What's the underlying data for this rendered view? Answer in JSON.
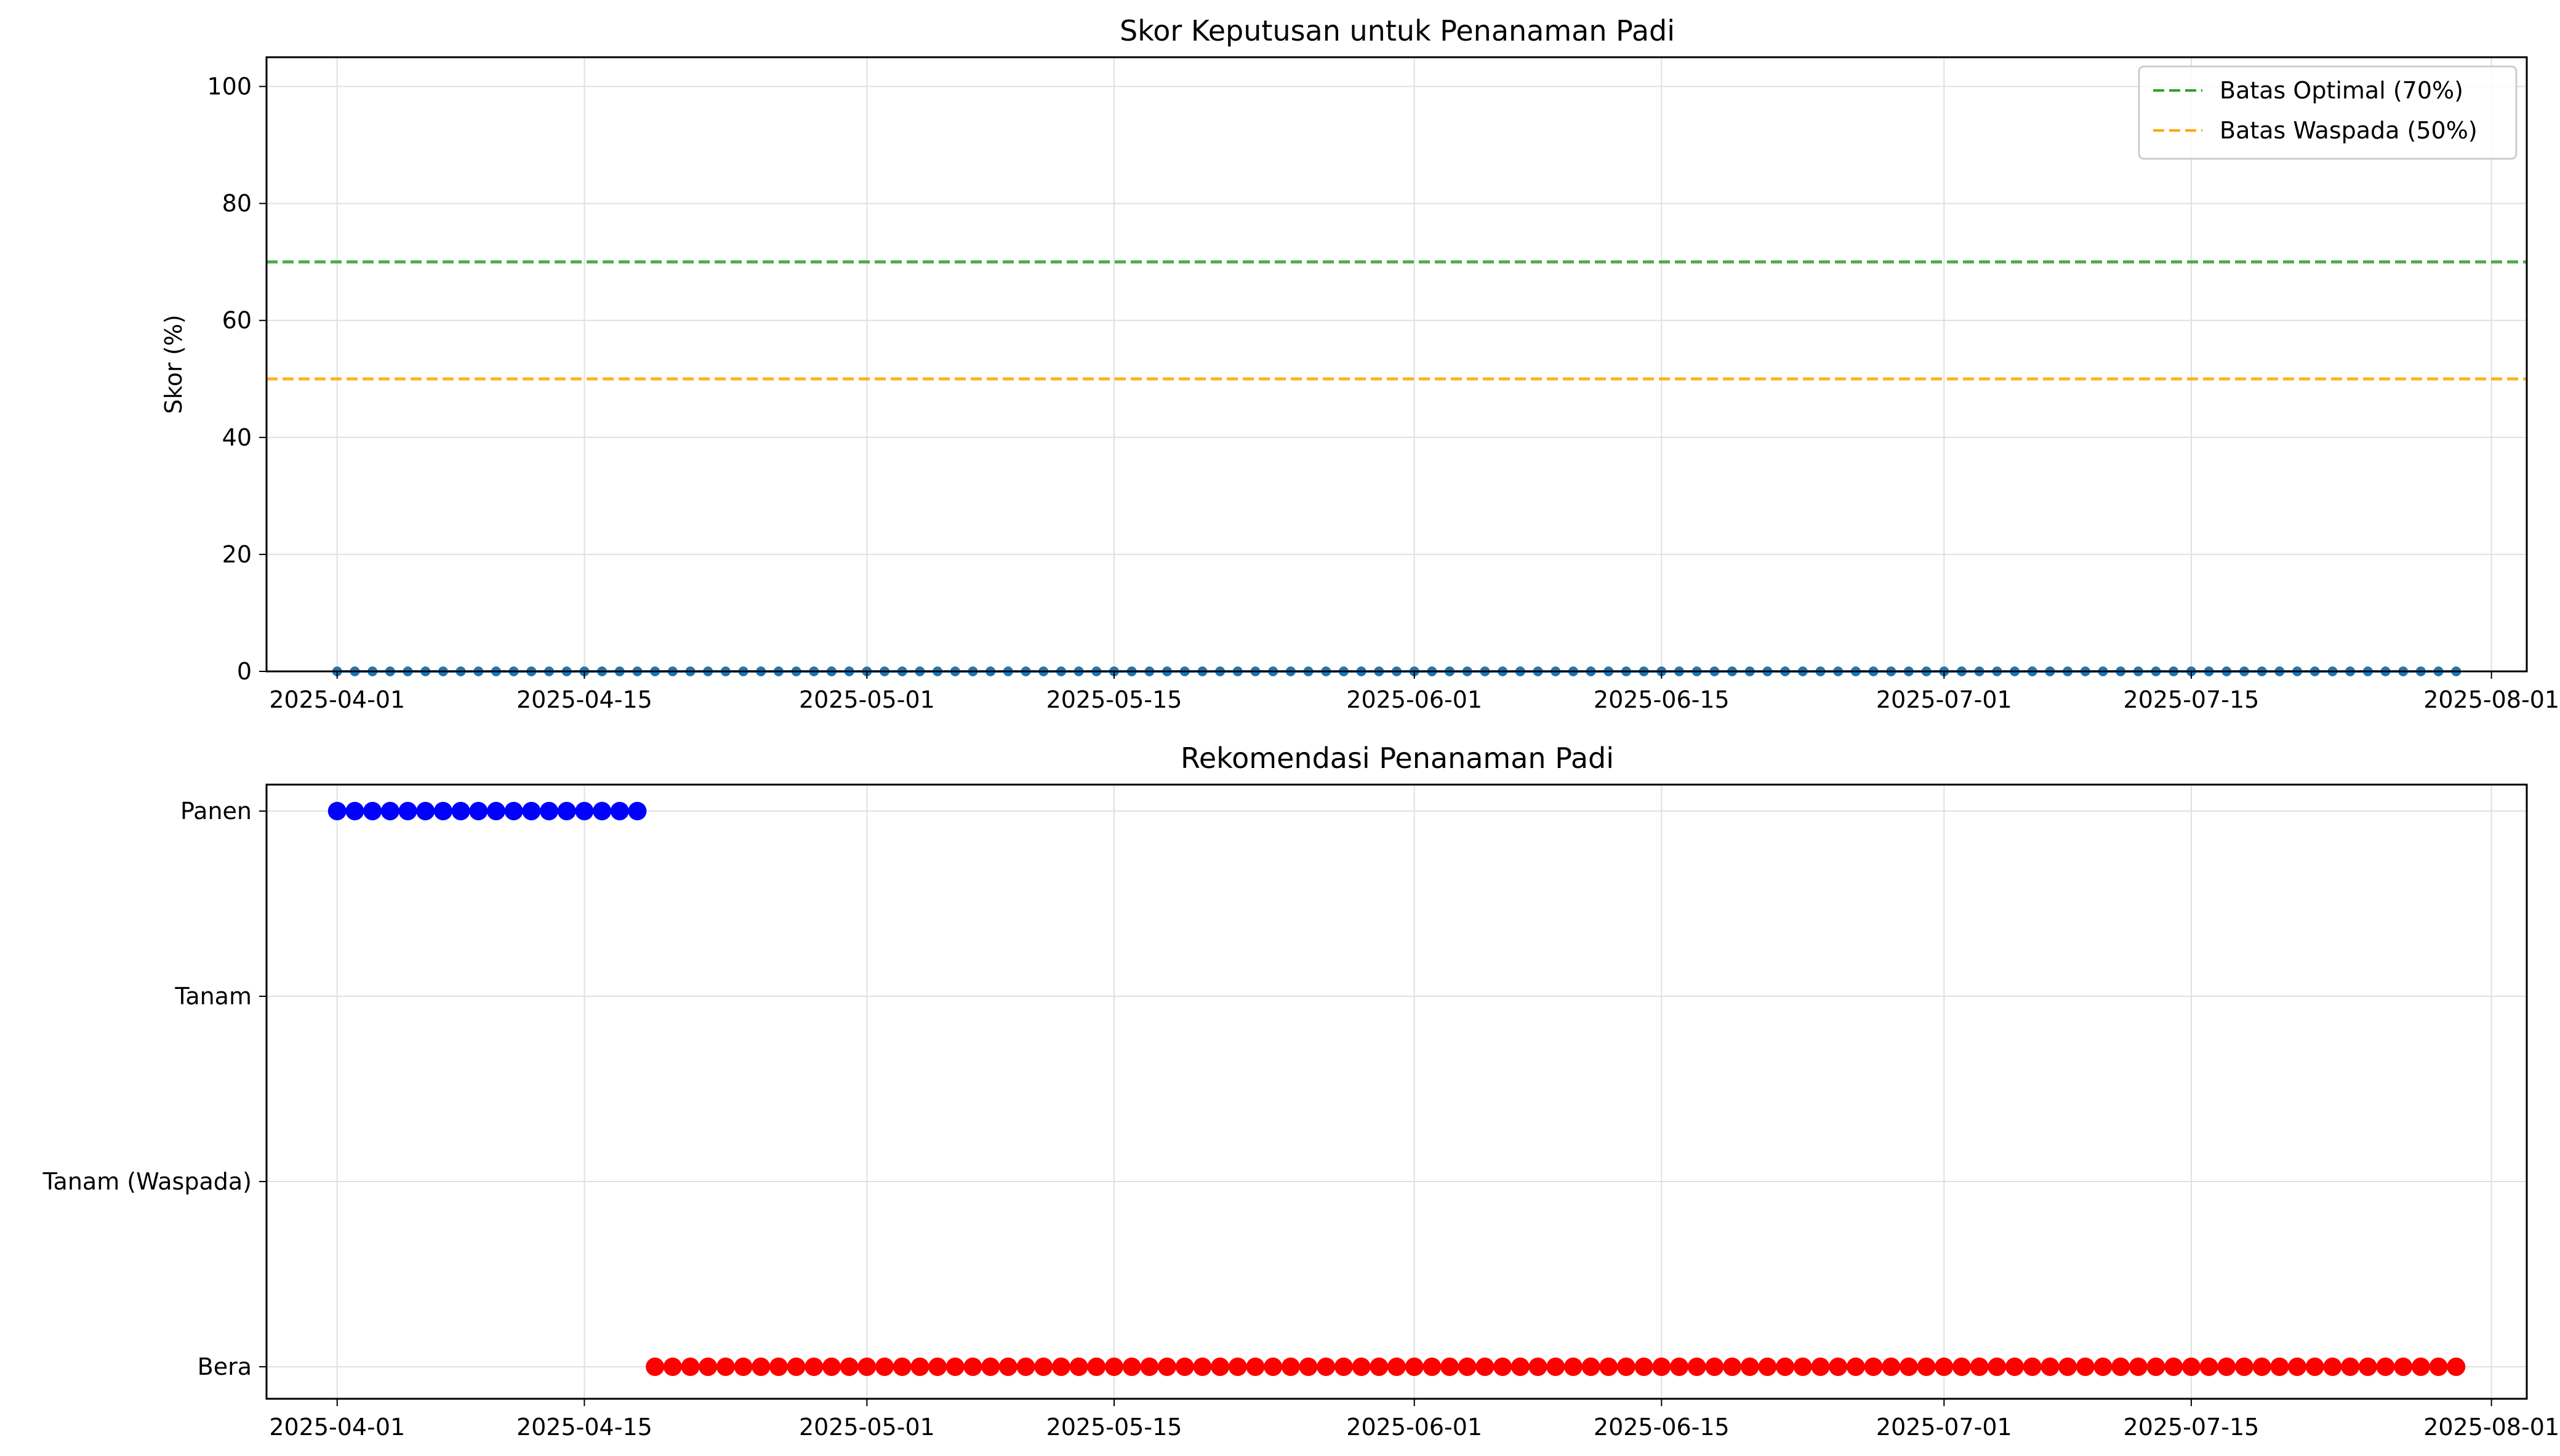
{
  "chart_data": [
    {
      "type": "line",
      "title": "Skor Keputusan untuk Penanaman Padi",
      "xlabel": "",
      "ylabel": "Skor (%)",
      "xlim": [
        "2025-03-28",
        "2025-08-03"
      ],
      "ylim": [
        0,
        105
      ],
      "grid": true,
      "legend_position": "top-right",
      "x_ticks": [
        "2025-04-01",
        "2025-04-15",
        "2025-05-01",
        "2025-05-15",
        "2025-06-01",
        "2025-06-15",
        "2025-07-01",
        "2025-07-15",
        "2025-08-01"
      ],
      "y_ticks": [
        0,
        20,
        40,
        60,
        80,
        100
      ],
      "series": [
        {
          "color": "#1f77b4",
          "marker": "circle",
          "x_start": "2025-04-01",
          "x_end": "2025-07-30",
          "x_step_days": 1,
          "value": 0
        }
      ],
      "reference_lines": [
        {
          "name": "Batas Optimal (70%)",
          "value": 70,
          "color": "#2ca02c",
          "style": "dashed"
        },
        {
          "name": "Batas Waspada (50%)",
          "value": 50,
          "color": "#ffa500",
          "style": "dashed"
        }
      ]
    },
    {
      "type": "scatter",
      "title": "Rekomendasi Penanaman Padi",
      "xlabel": "",
      "ylabel": "",
      "xlim": [
        "2025-03-28",
        "2025-08-03"
      ],
      "grid": true,
      "x_ticks": [
        "2025-04-01",
        "2025-04-15",
        "2025-05-01",
        "2025-05-15",
        "2025-06-01",
        "2025-06-15",
        "2025-07-01",
        "2025-07-15",
        "2025-08-01"
      ],
      "categories": [
        "Panen",
        "Tanam",
        "Tanam (Waspada)",
        "Bera"
      ],
      "series": [
        {
          "category": "Panen",
          "color": "#0000ff",
          "x_start": "2025-04-01",
          "x_end": "2025-04-18",
          "x_step_days": 1
        },
        {
          "category": "Bera",
          "color": "#ff0000",
          "x_start": "2025-04-19",
          "x_end": "2025-07-30",
          "x_step_days": 1
        }
      ]
    }
  ]
}
